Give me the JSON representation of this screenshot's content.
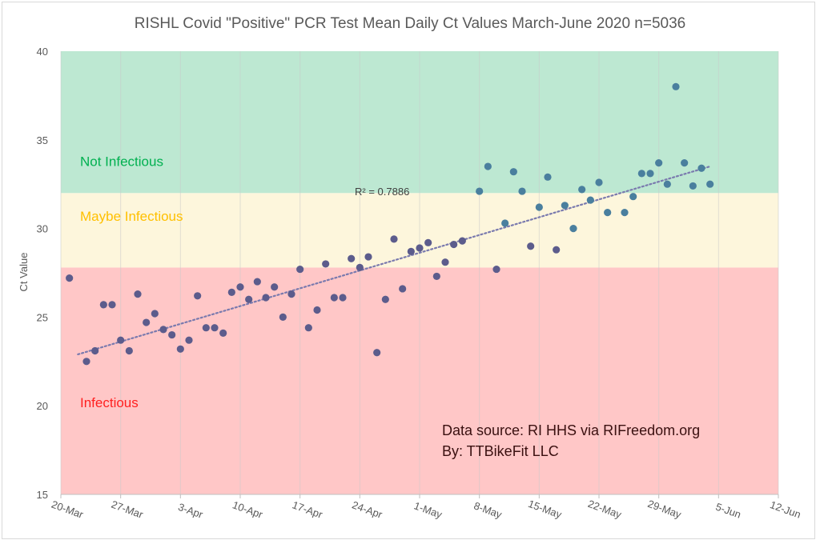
{
  "chart_data": {
    "type": "scatter",
    "title": "RISHL Covid \"Positive\" PCR Test Mean Daily Ct Values March-June 2020 n=5036",
    "ylabel": "Ct Value",
    "xlabel": "",
    "xlim": [
      "2020-03-20",
      "2020-06-12"
    ],
    "ylim": [
      15,
      40
    ],
    "yticks": [
      "15",
      "20",
      "25",
      "30",
      "35",
      "40"
    ],
    "xticks": [
      {
        "date": "2020-03-20",
        "label": "20-Mar"
      },
      {
        "date": "2020-03-27",
        "label": "27-Mar"
      },
      {
        "date": "2020-04-03",
        "label": "3-Apr"
      },
      {
        "date": "2020-04-10",
        "label": "10-Apr"
      },
      {
        "date": "2020-04-17",
        "label": "17-Apr"
      },
      {
        "date": "2020-04-24",
        "label": "24-Apr"
      },
      {
        "date": "2020-05-01",
        "label": "1-May"
      },
      {
        "date": "2020-05-08",
        "label": "8-May"
      },
      {
        "date": "2020-05-15",
        "label": "15-May"
      },
      {
        "date": "2020-05-22",
        "label": "22-May"
      },
      {
        "date": "2020-05-29",
        "label": "29-May"
      },
      {
        "date": "2020-06-05",
        "label": "5-Jun"
      },
      {
        "date": "2020-06-12",
        "label": "12-Jun"
      }
    ],
    "bands": [
      {
        "label": "Infectious",
        "from": 15,
        "to": 27.8,
        "color": "#ffc7c7",
        "text_color": "#ff2020"
      },
      {
        "label": "Maybe Infectious",
        "from": 27.8,
        "to": 32,
        "color": "#fdf6dc",
        "text_color": "#ffc000"
      },
      {
        "label": "Not Infectious",
        "from": 32,
        "to": 40,
        "color": "#bde8d2",
        "text_color": "#00b050"
      }
    ],
    "trendline": {
      "r2_label": "R² = 0.7886",
      "from": [
        "2020-03-22",
        22.9
      ],
      "to": [
        "2020-06-04",
        33.5
      ],
      "color": "#7a7aae"
    },
    "point_colors": {
      "below": "#5c5c8c",
      "above": "#4a7f9e"
    },
    "points": [
      {
        "date": "2020-03-21",
        "ct": 27.2
      },
      {
        "date": "2020-03-23",
        "ct": 22.5
      },
      {
        "date": "2020-03-24",
        "ct": 23.1
      },
      {
        "date": "2020-03-25",
        "ct": 25.7
      },
      {
        "date": "2020-03-26",
        "ct": 25.7
      },
      {
        "date": "2020-03-27",
        "ct": 23.7
      },
      {
        "date": "2020-03-28",
        "ct": 23.1
      },
      {
        "date": "2020-03-29",
        "ct": 26.3
      },
      {
        "date": "2020-03-30",
        "ct": 24.7
      },
      {
        "date": "2020-03-31",
        "ct": 25.2
      },
      {
        "date": "2020-04-01",
        "ct": 24.3
      },
      {
        "date": "2020-04-02",
        "ct": 24.0
      },
      {
        "date": "2020-04-03",
        "ct": 23.2
      },
      {
        "date": "2020-04-04",
        "ct": 23.7
      },
      {
        "date": "2020-04-05",
        "ct": 26.2
      },
      {
        "date": "2020-04-06",
        "ct": 24.4
      },
      {
        "date": "2020-04-07",
        "ct": 24.4
      },
      {
        "date": "2020-04-08",
        "ct": 24.1
      },
      {
        "date": "2020-04-09",
        "ct": 26.4
      },
      {
        "date": "2020-04-10",
        "ct": 26.7
      },
      {
        "date": "2020-04-11",
        "ct": 26.0
      },
      {
        "date": "2020-04-12",
        "ct": 27.0
      },
      {
        "date": "2020-04-13",
        "ct": 26.1
      },
      {
        "date": "2020-04-14",
        "ct": 26.7
      },
      {
        "date": "2020-04-15",
        "ct": 25.0
      },
      {
        "date": "2020-04-16",
        "ct": 26.3
      },
      {
        "date": "2020-04-17",
        "ct": 27.7
      },
      {
        "date": "2020-04-18",
        "ct": 24.4
      },
      {
        "date": "2020-04-19",
        "ct": 25.4
      },
      {
        "date": "2020-04-20",
        "ct": 28.0
      },
      {
        "date": "2020-04-21",
        "ct": 26.1
      },
      {
        "date": "2020-04-22",
        "ct": 26.1
      },
      {
        "date": "2020-04-23",
        "ct": 28.3
      },
      {
        "date": "2020-04-24",
        "ct": 27.8
      },
      {
        "date": "2020-04-25",
        "ct": 28.4
      },
      {
        "date": "2020-04-26",
        "ct": 23.0
      },
      {
        "date": "2020-04-27",
        "ct": 26.0
      },
      {
        "date": "2020-04-28",
        "ct": 29.4
      },
      {
        "date": "2020-04-29",
        "ct": 26.6
      },
      {
        "date": "2020-04-30",
        "ct": 28.7
      },
      {
        "date": "2020-05-01",
        "ct": 28.9
      },
      {
        "date": "2020-05-02",
        "ct": 29.2
      },
      {
        "date": "2020-05-03",
        "ct": 27.3
      },
      {
        "date": "2020-05-04",
        "ct": 28.1
      },
      {
        "date": "2020-05-05",
        "ct": 29.1
      },
      {
        "date": "2020-05-06",
        "ct": 29.3
      },
      {
        "date": "2020-05-08",
        "ct": 32.1
      },
      {
        "date": "2020-05-09",
        "ct": 33.5
      },
      {
        "date": "2020-05-10",
        "ct": 27.7
      },
      {
        "date": "2020-05-11",
        "ct": 30.3
      },
      {
        "date": "2020-05-12",
        "ct": 33.2
      },
      {
        "date": "2020-05-13",
        "ct": 32.1
      },
      {
        "date": "2020-05-14",
        "ct": 29.0
      },
      {
        "date": "2020-05-15",
        "ct": 31.2
      },
      {
        "date": "2020-05-16",
        "ct": 32.9
      },
      {
        "date": "2020-05-17",
        "ct": 28.8
      },
      {
        "date": "2020-05-18",
        "ct": 31.3
      },
      {
        "date": "2020-05-19",
        "ct": 30.0
      },
      {
        "date": "2020-05-20",
        "ct": 32.2
      },
      {
        "date": "2020-05-21",
        "ct": 31.6
      },
      {
        "date": "2020-05-22",
        "ct": 32.6
      },
      {
        "date": "2020-05-23",
        "ct": 30.9
      },
      {
        "date": "2020-05-25",
        "ct": 30.9
      },
      {
        "date": "2020-05-26",
        "ct": 31.8
      },
      {
        "date": "2020-05-27",
        "ct": 33.1
      },
      {
        "date": "2020-05-28",
        "ct": 33.1
      },
      {
        "date": "2020-05-29",
        "ct": 33.7
      },
      {
        "date": "2020-05-30",
        "ct": 32.5
      },
      {
        "date": "2020-05-31",
        "ct": 38.0
      },
      {
        "date": "2020-06-01",
        "ct": 33.7
      },
      {
        "date": "2020-06-02",
        "ct": 32.4
      },
      {
        "date": "2020-06-03",
        "ct": 33.4
      },
      {
        "date": "2020-06-04",
        "ct": 32.5
      }
    ],
    "annotations": [
      "Data source: RI HHS via RIFreedom.org",
      "By: TTBikeFit LLC"
    ],
    "grid": {
      "vertical": true,
      "horizontal": false
    }
  }
}
